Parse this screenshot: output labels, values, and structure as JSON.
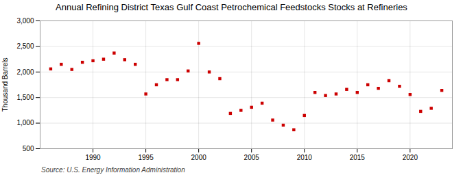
{
  "chart_data": {
    "type": "scatter",
    "title": "Annual Refining District Texas Gulf Coast Petrochemical Feedstocks Stocks at Refineries",
    "ylabel": "Thousand Barrels",
    "source": "Source: U.S. Energy Information Administration",
    "x": [
      1986,
      1987,
      1988,
      1989,
      1990,
      1991,
      1992,
      1993,
      1994,
      1995,
      1996,
      1997,
      1998,
      1999,
      2000,
      2001,
      2002,
      2003,
      2004,
      2005,
      2006,
      2007,
      2008,
      2009,
      2010,
      2011,
      2012,
      2013,
      2014,
      2015,
      2016,
      2017,
      2018,
      2019,
      2020,
      2021,
      2022,
      2023
    ],
    "values": [
      2060,
      2150,
      2050,
      2190,
      2220,
      2250,
      2370,
      2240,
      2150,
      1570,
      1750,
      1850,
      1850,
      2020,
      2560,
      2000,
      1870,
      1190,
      1250,
      1310,
      1390,
      1060,
      960,
      870,
      1150,
      1600,
      1540,
      1570,
      1660,
      1600,
      1750,
      1680,
      1830,
      1720,
      1560,
      1230,
      1290,
      1640
    ],
    "color": "#cc0000",
    "marker": "square",
    "xlim": [
      1985,
      2024
    ],
    "xticks": [
      1990,
      1995,
      2000,
      2005,
      2010,
      2015,
      2020
    ],
    "ylim": [
      500,
      3000
    ],
    "yticks": [
      500,
      {
        "value": 1000,
        "label": "1,000"
      },
      {
        "value": 1500,
        "label": "1,500"
      },
      {
        "value": 2000,
        "label": "2,000"
      },
      {
        "value": 2500,
        "label": "2,500"
      },
      {
        "value": 3000,
        "label": "3,000"
      }
    ],
    "grid": true
  }
}
